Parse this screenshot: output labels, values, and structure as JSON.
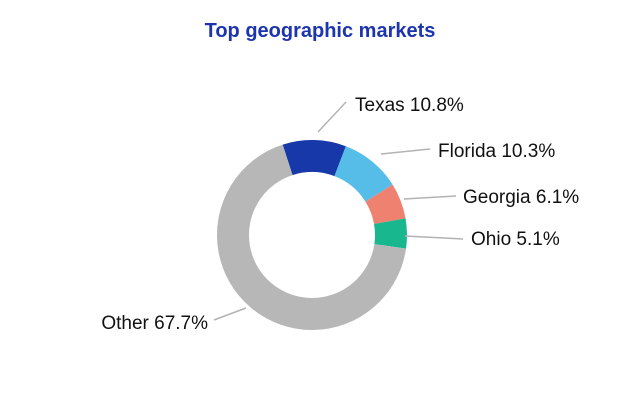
{
  "chart_data": {
    "type": "pie",
    "donut": true,
    "title": "Top geographic markets",
    "title_color": "#1c35ae",
    "leader_line_color": "#b3b3b3",
    "start_angle_deg": -18,
    "legend_position": "none",
    "slices": [
      {
        "name": "Texas",
        "value": 10.8,
        "label": "Texas 10.8%",
        "color": "#1638a8"
      },
      {
        "name": "Florida",
        "value": 10.3,
        "label": "Florida 10.3%",
        "color": "#55bde8"
      },
      {
        "name": "Georgia",
        "value": 6.1,
        "label": "Georgia 6.1%",
        "color": "#ee8170"
      },
      {
        "name": "Ohio",
        "value": 5.1,
        "label": "Ohio 5.1%",
        "color": "#18b78d"
      },
      {
        "name": "Other",
        "value": 67.7,
        "label": "Other 67.7%",
        "color": "#b7b7b7"
      }
    ]
  }
}
